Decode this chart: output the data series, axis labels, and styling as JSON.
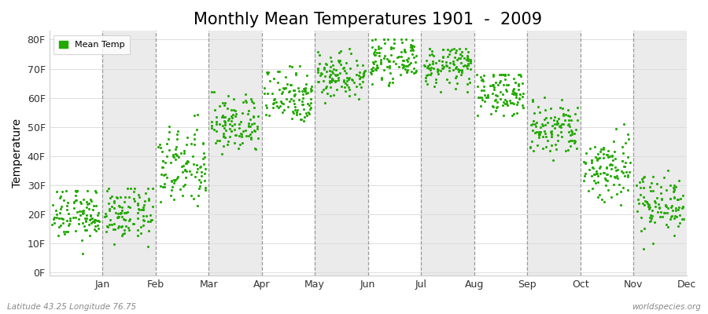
{
  "title": "Monthly Mean Temperatures 1901  -  2009",
  "ylabel": "Temperature",
  "xlabel_bottom_left": "Latitude 43.25 Longitude 76.75",
  "xlabel_bottom_right": "worldspecies.org",
  "legend_label": "Mean Temp",
  "months": [
    "Jan",
    "Feb",
    "Mar",
    "Apr",
    "May",
    "Jun",
    "Jul",
    "Aug",
    "Sep",
    "Oct",
    "Nov",
    "Dec"
  ],
  "ytick_labels": [
    "0F",
    "10F",
    "20F",
    "30F",
    "40F",
    "50F",
    "60F",
    "70F",
    "80F"
  ],
  "ytick_values": [
    0,
    10,
    20,
    30,
    40,
    50,
    60,
    70,
    80
  ],
  "ylim": [
    -1,
    83
  ],
  "xlim": [
    0,
    12
  ],
  "dot_color": "#22aa00",
  "bg_color": "#ffffff",
  "alt_band_color": "#ebebeb",
  "title_fontsize": 15,
  "axis_label_fontsize": 10,
  "tick_fontsize": 9,
  "monthly_mean_temps": [
    20,
    20,
    36,
    51,
    61,
    68,
    73,
    71,
    62,
    49,
    36,
    24
  ],
  "monthly_std_temps": [
    4.5,
    4.5,
    7,
    5,
    5,
    4,
    3.5,
    3.5,
    4,
    5,
    6,
    5
  ],
  "monthly_min_temps": [
    3,
    1,
    18,
    37,
    48,
    58,
    64,
    62,
    54,
    36,
    23,
    5
  ],
  "monthly_max_temps": [
    28,
    29,
    57,
    62,
    71,
    77,
    80,
    77,
    68,
    65,
    51,
    40
  ],
  "n_years": 109
}
